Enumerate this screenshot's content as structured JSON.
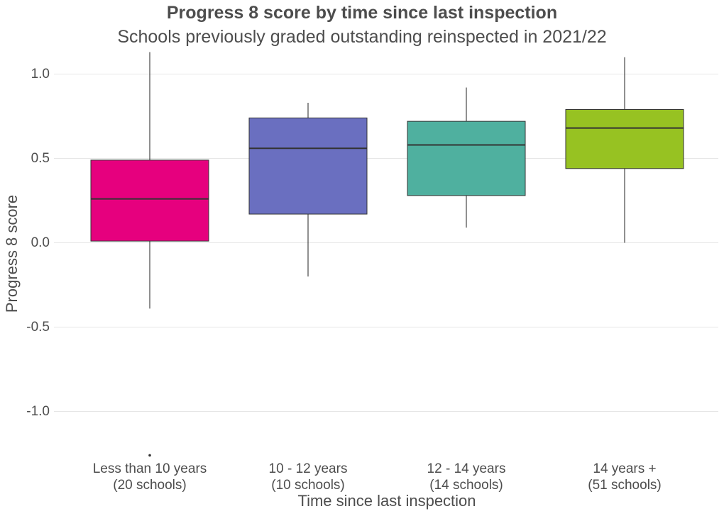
{
  "chart_data": {
    "type": "box",
    "title": "Progress 8 score by time since last inspection",
    "subtitle": "Schools previously graded outstanding reinspected in 2021/22",
    "xlabel": "Time since last inspection",
    "ylabel": "Progress 8 score",
    "ylim": [
      -1.28,
      1.13
    ],
    "yticks": [
      -1.0,
      -0.5,
      0.0,
      0.5,
      1.0
    ],
    "ytick_labels": [
      "-1.0",
      "-0.5",
      "0.0",
      "0.5",
      "1.0"
    ],
    "grid": true,
    "categories": [
      "Less than 10 years\n(20 schools)",
      "10 - 12 years\n(10 schools)",
      "12 - 14 years\n(14 schools)",
      "14 years +\n(51 schools)"
    ],
    "boxes": [
      {
        "min": -0.39,
        "q1": 0.01,
        "median": 0.26,
        "q3": 0.49,
        "max": 1.13,
        "outliers": [
          -1.26
        ],
        "color": "#E6007E"
      },
      {
        "min": -0.2,
        "q1": 0.17,
        "median": 0.56,
        "q3": 0.74,
        "max": 0.83,
        "outliers": [],
        "color": "#6A6FC0"
      },
      {
        "min": 0.09,
        "q1": 0.28,
        "median": 0.58,
        "q3": 0.72,
        "max": 0.92,
        "outliers": [],
        "color": "#4FB09F"
      },
      {
        "min": 0.0,
        "q1": 0.44,
        "median": 0.68,
        "q3": 0.79,
        "max": 1.1,
        "outliers": [],
        "color": "#97C222"
      }
    ]
  }
}
